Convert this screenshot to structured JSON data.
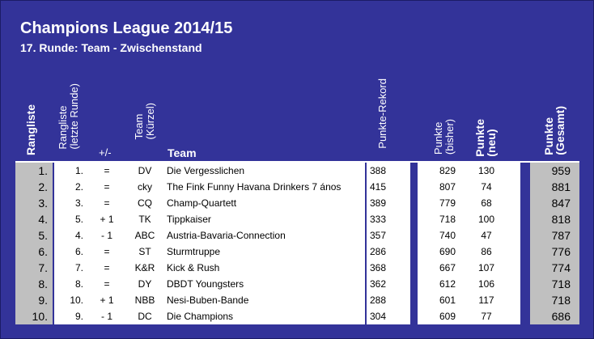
{
  "title": "Champions League 2014/15",
  "subtitle": "17. Runde: Team - Zwischenstand",
  "headers": {
    "rangliste": "Rangliste",
    "rangliste_letzte_1": "Rangliste",
    "rangliste_letzte_2": "(letzte Runde)",
    "diff": "+/-",
    "team_kurz_1": "Team",
    "team_kurz_2": "(Kürzel)",
    "team": "Team",
    "rekord": "Punkte-Rekord",
    "bisher_1": "Punkte",
    "bisher_2": "(bisher)",
    "neu_1": "Punkte",
    "neu_2": "(neu)",
    "gesamt_1": "Punkte",
    "gesamt_2": "(Gesamt)"
  },
  "rows": [
    {
      "rank": "1.",
      "prev": "1.",
      "diff": "=",
      "abbr": "DV",
      "team": "Die Vergesslichen",
      "rekord": "388",
      "bisher": "829",
      "neu": "130",
      "gesamt": "959"
    },
    {
      "rank": "2.",
      "prev": "2.",
      "diff": "=",
      "abbr": "cky",
      "team": "The Fink Funny Havana Drinkers 7 ános",
      "rekord": "415",
      "bisher": "807",
      "neu": "74",
      "gesamt": "881"
    },
    {
      "rank": "3.",
      "prev": "3.",
      "diff": "=",
      "abbr": "CQ",
      "team": "Champ-Quartett",
      "rekord": "389",
      "bisher": "779",
      "neu": "68",
      "gesamt": "847"
    },
    {
      "rank": "4.",
      "prev": "5.",
      "diff": "+ 1",
      "abbr": "TK",
      "team": "Tippkaiser",
      "rekord": "333",
      "bisher": "718",
      "neu": "100",
      "gesamt": "818"
    },
    {
      "rank": "5.",
      "prev": "4.",
      "diff": "- 1",
      "abbr": "ABC",
      "team": "Austria-Bavaria-Connection",
      "rekord": "357",
      "bisher": "740",
      "neu": "47",
      "gesamt": "787"
    },
    {
      "rank": "6.",
      "prev": "6.",
      "diff": "=",
      "abbr": "ST",
      "team": "Sturmtruppe",
      "rekord": "286",
      "bisher": "690",
      "neu": "86",
      "gesamt": "776"
    },
    {
      "rank": "7.",
      "prev": "7.",
      "diff": "=",
      "abbr": "K&R",
      "team": "Kick & Rush",
      "rekord": "368",
      "bisher": "667",
      "neu": "107",
      "gesamt": "774"
    },
    {
      "rank": "8.",
      "prev": "8.",
      "diff": "=",
      "abbr": "DY",
      "team": "DBDT Youngsters",
      "rekord": "362",
      "bisher": "612",
      "neu": "106",
      "gesamt": "718"
    },
    {
      "rank": "9.",
      "prev": "10.",
      "diff": "+ 1",
      "abbr": "NBB",
      "team": "Nesi-Buben-Bande",
      "rekord": "288",
      "bisher": "601",
      "neu": "117",
      "gesamt": "718"
    },
    {
      "rank": "10.",
      "prev": "9.",
      "diff": "- 1",
      "abbr": "DC",
      "team": "Die Champions",
      "rekord": "304",
      "bisher": "609",
      "neu": "77",
      "gesamt": "686"
    }
  ],
  "colors": {
    "background": "#333399",
    "rank_column": "#c0c0c0",
    "total_column": "#c0c0c0",
    "cell": "#ffffff"
  }
}
